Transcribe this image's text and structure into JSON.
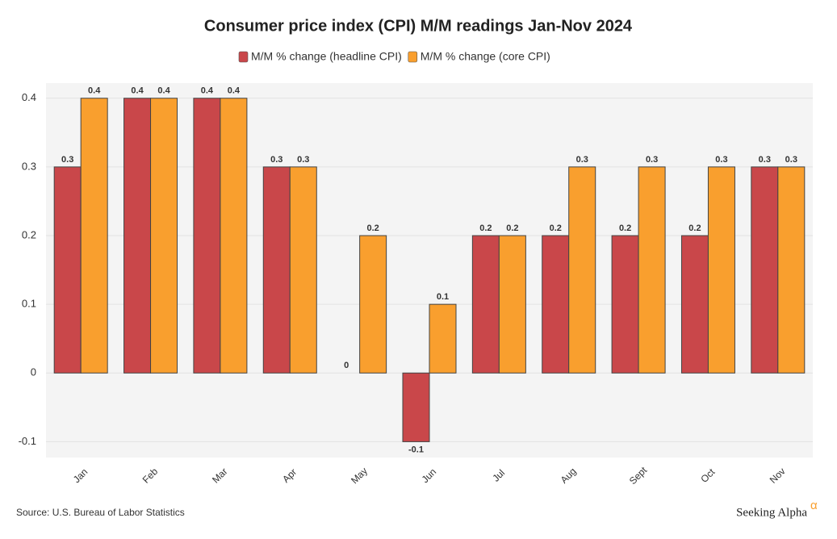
{
  "chart_data": {
    "type": "bar",
    "title": "Consumer price index (CPI) M/M readings Jan-Nov 2024",
    "categories": [
      "Jan",
      "Feb",
      "Mar",
      "Apr",
      "May",
      "Jun",
      "Jul",
      "Aug",
      "Sept",
      "Oct",
      "Nov"
    ],
    "series": [
      {
        "name": "M/M % change (headline CPI)",
        "color": "#c9474a",
        "values": [
          0.3,
          0.4,
          0.4,
          0.3,
          0,
          -0.1,
          0.2,
          0.2,
          0.2,
          0.2,
          0.3
        ]
      },
      {
        "name": "M/M % change (core CPI)",
        "color": "#f99f2e",
        "values": [
          0.4,
          0.4,
          0.4,
          0.3,
          0.2,
          0.1,
          0.2,
          0.3,
          0.3,
          0.3,
          0.3
        ]
      }
    ],
    "ylim": [
      -0.123,
      0.422
    ],
    "yticks": [
      -0.1,
      0,
      0.1,
      0.2,
      0.3,
      0.4
    ],
    "grid": true,
    "legend": "top",
    "source": "Source: U.S. Bureau of Labor Statistics",
    "brand": "Seeking Alpha",
    "brand_mark": "α"
  }
}
